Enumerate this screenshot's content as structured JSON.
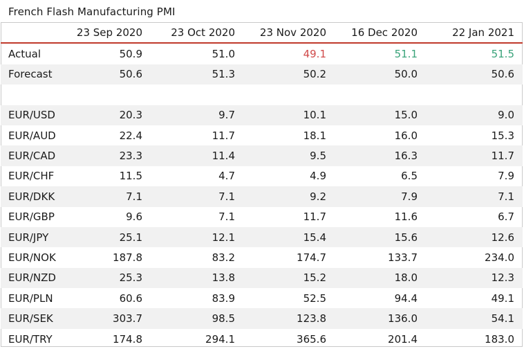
{
  "title": "French Flash Manufacturing PMI",
  "colors": {
    "negative": "#d04a4a",
    "positive": "#3aa37a",
    "header_rule": "#c0392b"
  },
  "columns": [
    "23 Sep 2020",
    "23 Oct 2020",
    "23 Nov 2020",
    "16 Dec 2020",
    "22 Jan 2021"
  ],
  "actual": {
    "label": "Actual",
    "values": [
      "50.9",
      "51.0",
      "49.1",
      "51.1",
      "51.5"
    ],
    "status": [
      "",
      "",
      "negative",
      "positive",
      "positive"
    ]
  },
  "forecast": {
    "label": "Forecast",
    "values": [
      "50.6",
      "51.3",
      "50.2",
      "50.0",
      "50.6"
    ]
  },
  "pairs": [
    {
      "label": "EUR/USD",
      "values": [
        "20.3",
        "9.7",
        "10.1",
        "15.0",
        "9.0"
      ]
    },
    {
      "label": "EUR/AUD",
      "values": [
        "22.4",
        "11.7",
        "18.1",
        "16.0",
        "15.3"
      ]
    },
    {
      "label": "EUR/CAD",
      "values": [
        "23.3",
        "11.4",
        "9.5",
        "16.3",
        "11.7"
      ]
    },
    {
      "label": "EUR/CHF",
      "values": [
        "11.5",
        "4.7",
        "4.9",
        "6.5",
        "7.9"
      ]
    },
    {
      "label": "EUR/DKK",
      "values": [
        "7.1",
        "7.1",
        "9.2",
        "7.9",
        "7.1"
      ]
    },
    {
      "label": "EUR/GBP",
      "values": [
        "9.6",
        "7.1",
        "11.7",
        "11.6",
        "6.7"
      ]
    },
    {
      "label": "EUR/JPY",
      "values": [
        "25.1",
        "12.1",
        "15.4",
        "15.6",
        "12.6"
      ]
    },
    {
      "label": "EUR/NOK",
      "values": [
        "187.8",
        "83.2",
        "174.7",
        "133.7",
        "234.0"
      ]
    },
    {
      "label": "EUR/NZD",
      "values": [
        "25.3",
        "13.8",
        "15.2",
        "18.0",
        "12.3"
      ]
    },
    {
      "label": "EUR/PLN",
      "values": [
        "60.6",
        "83.9",
        "52.5",
        "94.4",
        "49.1"
      ]
    },
    {
      "label": "EUR/SEK",
      "values": [
        "303.7",
        "98.5",
        "123.8",
        "136.0",
        "54.1"
      ]
    },
    {
      "label": "EUR/TRY",
      "values": [
        "174.8",
        "294.1",
        "365.6",
        "201.4",
        "183.0"
      ]
    }
  ]
}
